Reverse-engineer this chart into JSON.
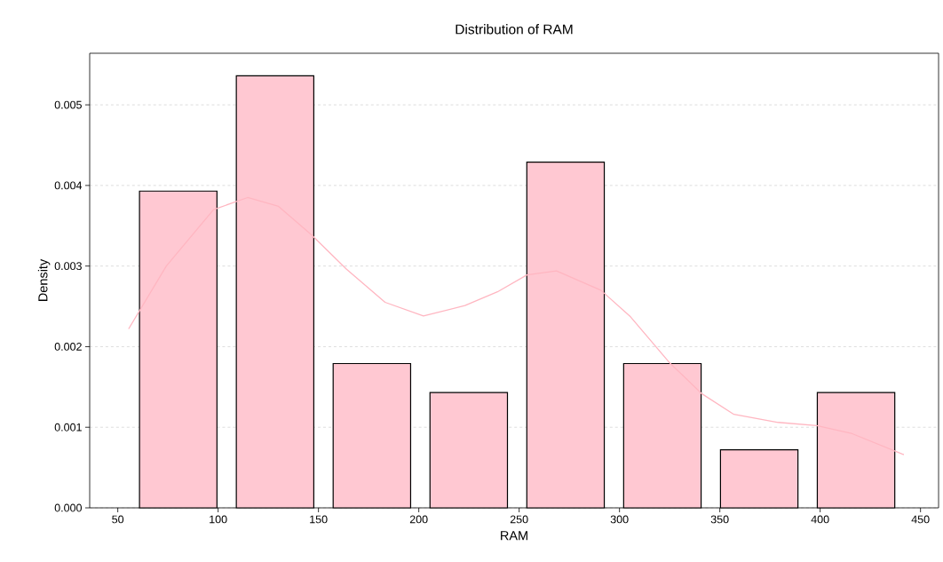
{
  "chart_data": {
    "type": "histogram",
    "title": "Distribution of RAM",
    "xlabel": "RAM",
    "ylabel": "Density",
    "bins": [
      56,
      104.25,
      152.5,
      200.75,
      249,
      297.25,
      345.5,
      393.75,
      442
    ],
    "series": [
      {
        "color": "#ffc8d2",
        "values": [
          0.00393,
          0.00536,
          0.00179,
          0.00143,
          0.00429,
          0.00179,
          0.00072,
          0.00143
        ]
      },
      {
        "type": "line",
        "color": "#ffb6c1",
        "line_style": "solid",
        "x": [
          55.4,
          74.2,
          97.7,
          114.7,
          130.1,
          146.4,
          164.0,
          183.2,
          202.3,
          223,
          239.2,
          253.9,
          268.6,
          290.7,
          305.5,
          324.6,
          340.8,
          357,
          379.1,
          398.3,
          416,
          441.7
        ],
        "values": [
          0.00222,
          0.003,
          0.0037,
          0.00385,
          0.00374,
          0.00339,
          0.00296,
          0.00255,
          0.00238,
          0.00251,
          0.00268,
          0.00289,
          0.00294,
          0.0027,
          0.00237,
          0.00181,
          0.00142,
          0.00116,
          0.00106,
          0.00102,
          0.00092,
          0.00066
        ]
      }
    ],
    "xlim": [
      36,
      459
    ],
    "ylim": [
      0,
      0.00564
    ],
    "xticks": [
      50,
      100,
      150,
      200,
      250,
      300,
      350,
      400,
      450
    ],
    "yticks": [
      {
        "value": 0,
        "label": "0.000"
      },
      {
        "value": 0.001,
        "label": "0.001"
      },
      {
        "value": 0.002,
        "label": "0.002"
      },
      {
        "value": 0.003,
        "label": "0.003"
      },
      {
        "value": 0.004,
        "label": "0.004"
      },
      {
        "value": 0.005,
        "label": "0.005"
      }
    ],
    "grid": "y"
  }
}
